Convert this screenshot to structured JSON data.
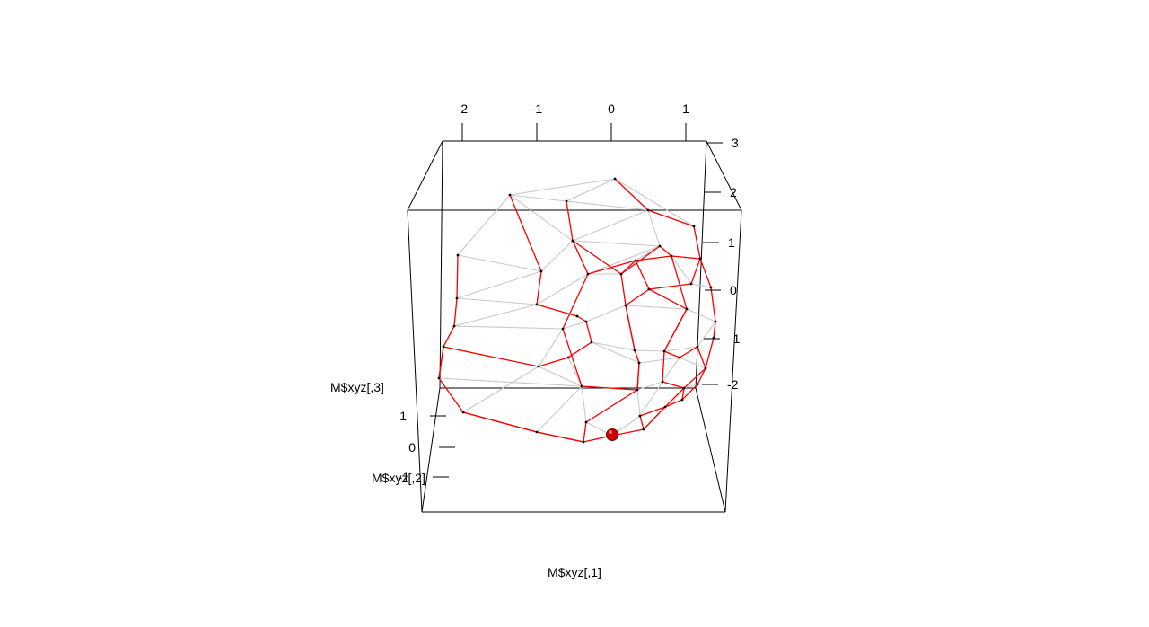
{
  "chart_data": {
    "type": "scatter3d",
    "xlabel": "M$xyz[,1]",
    "ylabel": "M$xyz[,2]",
    "zlabel": "M$xyz[,3]",
    "x_ticks": [
      "-2",
      "-1",
      "0",
      "1"
    ],
    "y_ticks": [
      "1",
      "0",
      "-1"
    ],
    "z_ticks": [
      "3",
      "2",
      "1",
      "0",
      "-1",
      "-2"
    ],
    "colors": {
      "mesh": "#c8c8c8",
      "path": "#ff0000",
      "point": "#000000",
      "highlight": "#cc0000",
      "box": "#000000"
    }
  }
}
